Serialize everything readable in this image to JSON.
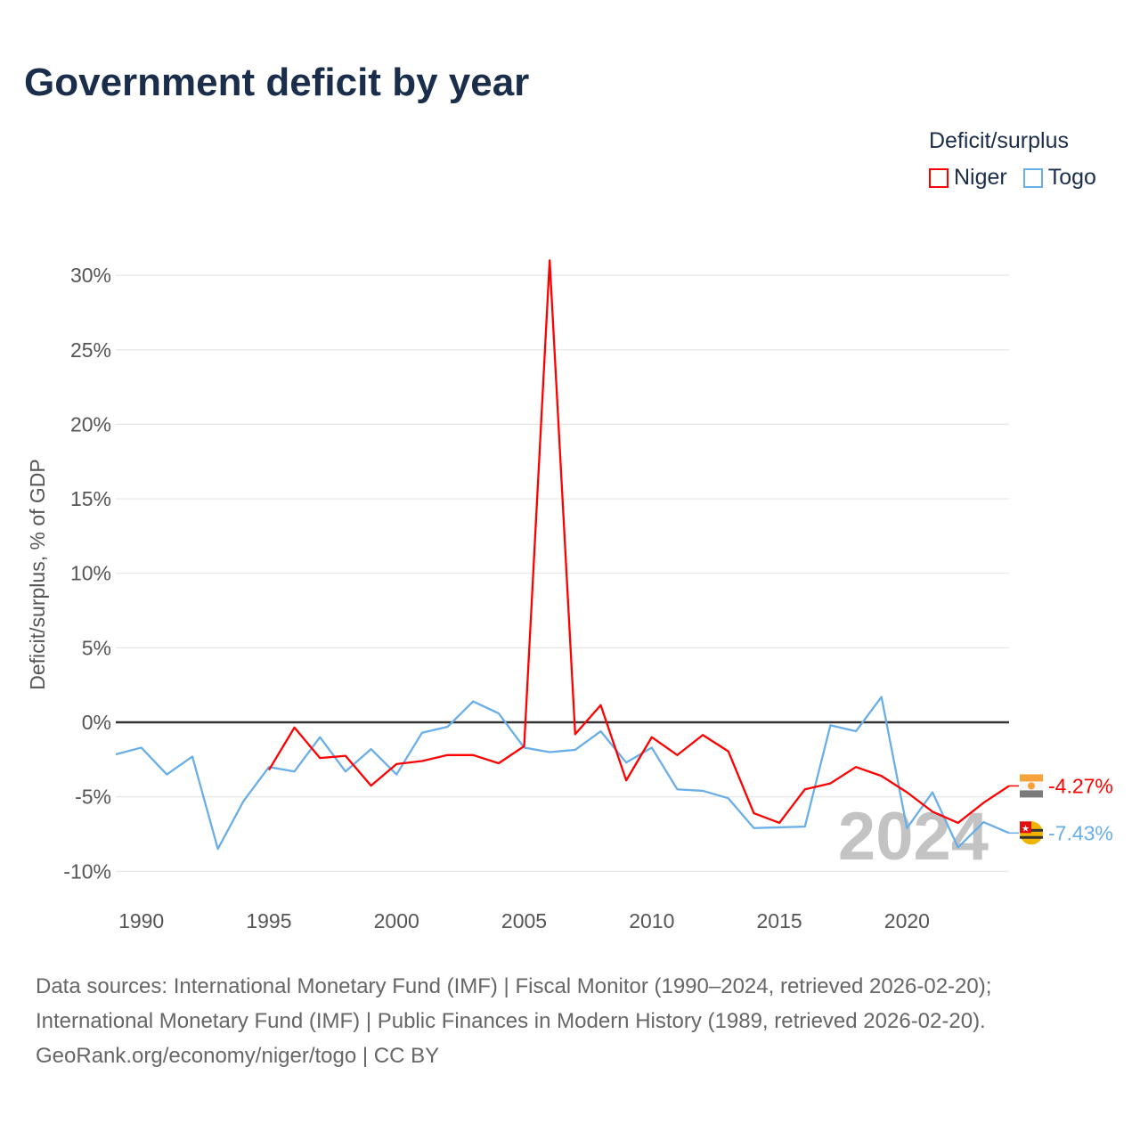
{
  "chart_data": {
    "type": "line",
    "title": "Government deficit by year",
    "ylabel": "Deficit/surplus, % of GDP",
    "xlabel": "",
    "xlim": [
      1989,
      2024
    ],
    "ylim": [
      -12,
      31
    ],
    "x_ticks": [
      1990,
      1995,
      2000,
      2005,
      2010,
      2015,
      2020
    ],
    "y_ticks": [
      -10,
      -5,
      0,
      5,
      10,
      15,
      20,
      25,
      30
    ],
    "y_tick_labels": [
      "-10%",
      "-5%",
      "0%",
      "5%",
      "10%",
      "15%",
      "20%",
      "25%",
      "30%"
    ],
    "legend_title": "Deficit/surplus",
    "legend_position": "top-right",
    "grid": true,
    "year_watermark": "2024",
    "series": [
      {
        "name": "Niger",
        "color": "#ff0000",
        "end_label": "-4.27%",
        "x": [
          1995,
          1996,
          1997,
          1998,
          1999,
          2000,
          2001,
          2002,
          2003,
          2004,
          2005,
          2006,
          2007,
          2008,
          2009,
          2010,
          2011,
          2012,
          2013,
          2014,
          2015,
          2016,
          2017,
          2018,
          2019,
          2020,
          2021,
          2022,
          2023,
          2024
        ],
        "values": [
          -3.2,
          -0.35,
          -2.4,
          -2.25,
          -4.25,
          -2.8,
          -2.6,
          -2.2,
          -2.2,
          -2.75,
          -1.6,
          31.0,
          -0.8,
          1.15,
          -3.9,
          -1.0,
          -2.2,
          -0.85,
          -1.95,
          -6.1,
          -6.75,
          -4.5,
          -4.1,
          -3.0,
          -3.6,
          -4.7,
          -6.0,
          -6.75,
          -5.4,
          -4.27
        ]
      },
      {
        "name": "Togo",
        "color": "#6aaee8",
        "end_label": "-7.43%",
        "x": [
          1989,
          1990,
          1991,
          1992,
          1993,
          1994,
          1995,
          1996,
          1997,
          1998,
          1999,
          2000,
          2001,
          2002,
          2003,
          2004,
          2005,
          2006,
          2007,
          2008,
          2009,
          2010,
          2011,
          2012,
          2013,
          2014,
          2015,
          2016,
          2017,
          2018,
          2019,
          2020,
          2021,
          2022,
          2023,
          2024
        ],
        "values": [
          -2.15,
          -1.7,
          -3.5,
          -2.3,
          -8.5,
          -5.3,
          -3.0,
          -3.3,
          -1.0,
          -3.3,
          -1.8,
          -3.5,
          -0.7,
          -0.3,
          1.4,
          0.6,
          -1.7,
          -2.0,
          -1.85,
          -0.6,
          -2.7,
          -1.7,
          -4.5,
          -4.6,
          -5.1,
          -7.1,
          -7.05,
          -7.0,
          -0.2,
          -0.6,
          1.7,
          -7.1,
          -4.7,
          -8.4,
          -6.7,
          -7.43
        ]
      }
    ]
  },
  "footer": {
    "line1": "Data sources: International Monetary Fund (IMF) | Fiscal Monitor (1990–2024, retrieved 2026-02-20);",
    "line2": "International Monetary Fund (IMF) | Public Finances in Modern History (1989, retrieved 2026-02-20).",
    "line3": "GeoRank.org/economy/niger/togo | CC BY"
  }
}
